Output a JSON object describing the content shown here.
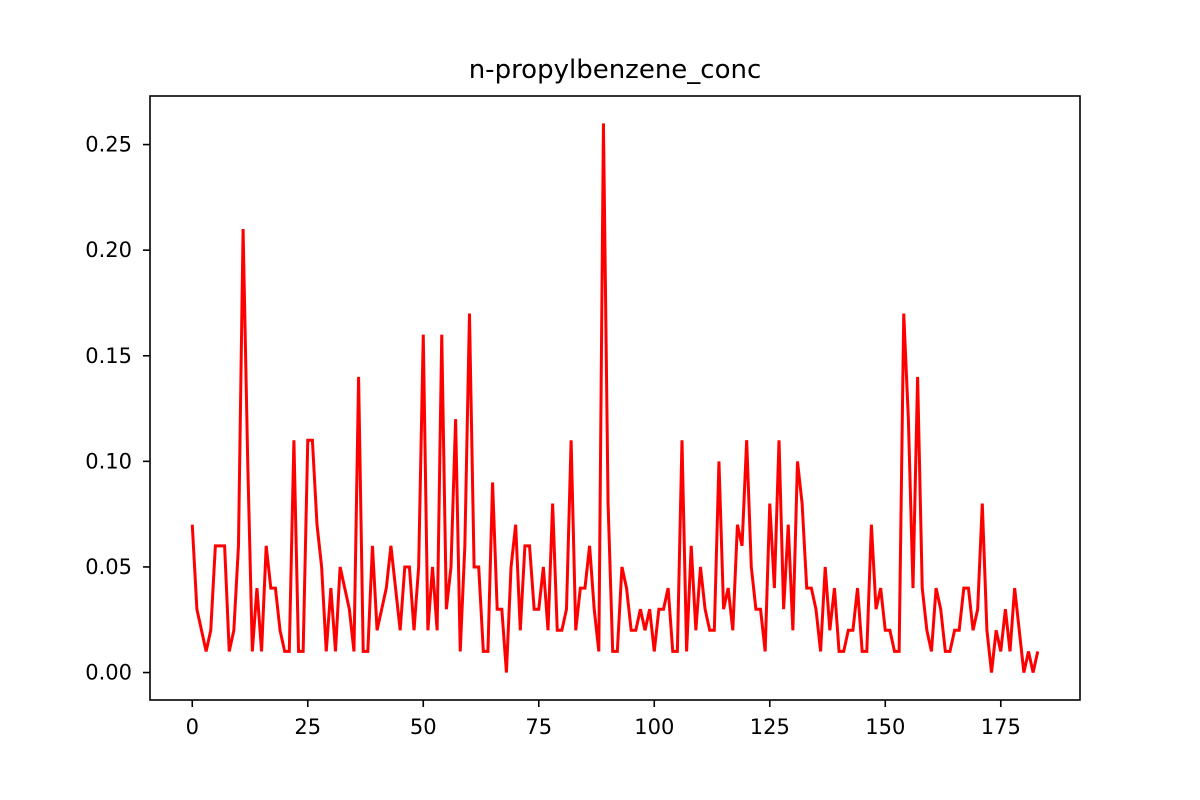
{
  "chart_data": {
    "type": "line",
    "title": "n-propylbenzene_conc",
    "xlabel": "",
    "ylabel": "",
    "xlim": [
      -9.15,
      192.15
    ],
    "ylim": [
      -0.013,
      0.273
    ],
    "x_ticks": [
      0,
      25,
      50,
      75,
      100,
      125,
      150,
      175
    ],
    "x_tick_labels": [
      "0",
      "25",
      "50",
      "75",
      "100",
      "125",
      "150",
      "175"
    ],
    "y_ticks": [
      0.0,
      0.05,
      0.1,
      0.15,
      0.2,
      0.25
    ],
    "y_tick_labels": [
      "0.00",
      "0.05",
      "0.10",
      "0.15",
      "0.20",
      "0.25"
    ],
    "grid": false,
    "legend": "none",
    "series": [
      {
        "name": "n-propylbenzene_conc",
        "color": "#ff0000",
        "x_start": 0,
        "x_step": 1,
        "values": [
          0.07,
          0.03,
          0.02,
          0.01,
          0.02,
          0.06,
          0.06,
          0.06,
          0.01,
          0.02,
          0.06,
          0.21,
          0.1,
          0.01,
          0.04,
          0.01,
          0.06,
          0.04,
          0.04,
          0.02,
          0.01,
          0.01,
          0.11,
          0.01,
          0.01,
          0.11,
          0.11,
          0.07,
          0.05,
          0.01,
          0.04,
          0.01,
          0.05,
          0.04,
          0.03,
          0.01,
          0.14,
          0.01,
          0.01,
          0.06,
          0.02,
          0.03,
          0.04,
          0.06,
          0.04,
          0.02,
          0.05,
          0.05,
          0.02,
          0.05,
          0.16,
          0.02,
          0.05,
          0.02,
          0.16,
          0.03,
          0.05,
          0.12,
          0.01,
          0.06,
          0.17,
          0.05,
          0.05,
          0.01,
          0.01,
          0.09,
          0.03,
          0.03,
          0.0,
          0.05,
          0.07,
          0.02,
          0.06,
          0.06,
          0.03,
          0.03,
          0.05,
          0.02,
          0.08,
          0.02,
          0.02,
          0.03,
          0.11,
          0.02,
          0.04,
          0.04,
          0.06,
          0.03,
          0.01,
          0.26,
          0.08,
          0.01,
          0.01,
          0.05,
          0.04,
          0.02,
          0.02,
          0.03,
          0.02,
          0.03,
          0.01,
          0.03,
          0.03,
          0.04,
          0.01,
          0.01,
          0.11,
          0.01,
          0.06,
          0.02,
          0.05,
          0.03,
          0.02,
          0.02,
          0.1,
          0.03,
          0.04,
          0.02,
          0.07,
          0.06,
          0.11,
          0.05,
          0.03,
          0.03,
          0.01,
          0.08,
          0.04,
          0.11,
          0.03,
          0.07,
          0.02,
          0.1,
          0.08,
          0.04,
          0.04,
          0.03,
          0.01,
          0.05,
          0.02,
          0.04,
          0.01,
          0.01,
          0.02,
          0.02,
          0.04,
          0.01,
          0.01,
          0.07,
          0.03,
          0.04,
          0.02,
          0.02,
          0.01,
          0.01,
          0.17,
          0.12,
          0.04,
          0.14,
          0.04,
          0.02,
          0.01,
          0.04,
          0.03,
          0.01,
          0.01,
          0.02,
          0.02,
          0.04,
          0.04,
          0.02,
          0.03,
          0.08,
          0.02,
          0.0,
          0.02,
          0.01,
          0.03,
          0.01,
          0.04,
          0.02,
          0.0,
          0.01,
          0.0,
          0.01
        ]
      }
    ]
  }
}
